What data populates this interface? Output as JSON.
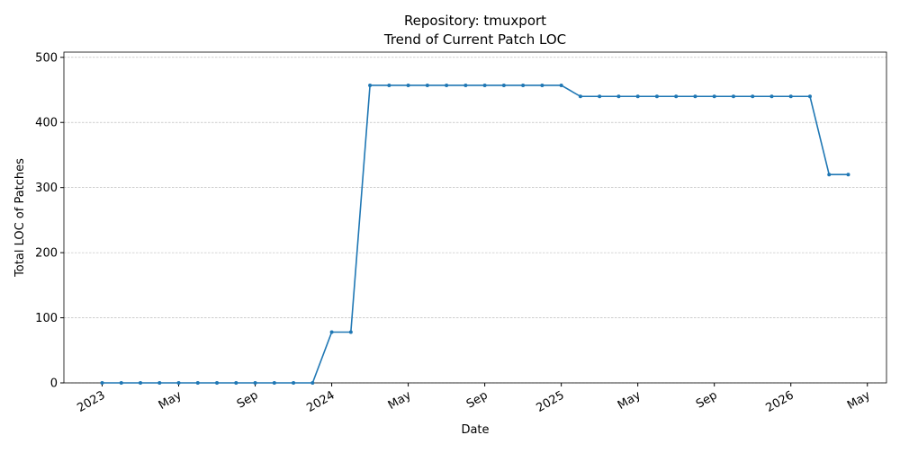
{
  "chart_data": {
    "type": "line",
    "title": "Repository: tmuxport",
    "subtitle": "Trend of Current Patch LOC",
    "x_label": "Date",
    "y_label": "Total LOC of Patches",
    "x": [
      "2023-01",
      "2023-02",
      "2023-03",
      "2023-04",
      "2023-05",
      "2023-06",
      "2023-07",
      "2023-08",
      "2023-09",
      "2023-10",
      "2023-11",
      "2023-12",
      "2024-01",
      "2024-02",
      "2024-03",
      "2024-04",
      "2024-05",
      "2024-06",
      "2024-07",
      "2024-08",
      "2024-09",
      "2024-10",
      "2024-11",
      "2024-12",
      "2025-01",
      "2025-02",
      "2025-03",
      "2025-04",
      "2025-05",
      "2025-06",
      "2025-07",
      "2025-08",
      "2025-09",
      "2025-10",
      "2025-11",
      "2025-12",
      "2026-01",
      "2026-02",
      "2026-03",
      "2026-04"
    ],
    "series": [
      {
        "name": "Total LOC",
        "color": "#1f77b4",
        "values": [
          0,
          0,
          0,
          0,
          0,
          0,
          0,
          0,
          0,
          0,
          0,
          0,
          78,
          78,
          457,
          457,
          457,
          457,
          457,
          457,
          457,
          457,
          457,
          457,
          457,
          440,
          440,
          440,
          440,
          440,
          440,
          440,
          440,
          440,
          440,
          440,
          440,
          440,
          320,
          320
        ]
      }
    ],
    "xlim": [
      "2022-11",
      "2026-06"
    ],
    "xticks": [
      {
        "value": "2023-01",
        "label": "2023"
      },
      {
        "value": "2023-05",
        "label": "May"
      },
      {
        "value": "2023-09",
        "label": "Sep"
      },
      {
        "value": "2024-01",
        "label": "2024"
      },
      {
        "value": "2024-05",
        "label": "May"
      },
      {
        "value": "2024-09",
        "label": "Sep"
      },
      {
        "value": "2025-01",
        "label": "2025"
      },
      {
        "value": "2025-05",
        "label": "May"
      },
      {
        "value": "2025-09",
        "label": "Sep"
      },
      {
        "value": "2026-01",
        "label": "2026"
      },
      {
        "value": "2026-05",
        "label": "May"
      }
    ],
    "ylim": [
      0,
      508
    ],
    "yticks": [
      0,
      100,
      200,
      300,
      400,
      500
    ],
    "grid": true
  }
}
